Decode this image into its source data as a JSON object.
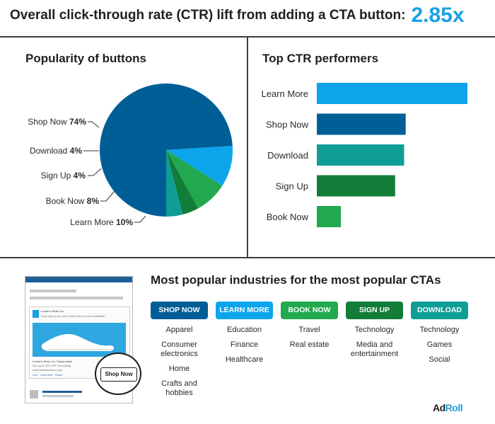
{
  "header": {
    "text": "Overall click-through rate (CTR) lift from adding a CTA button:",
    "value": "2.85x"
  },
  "chart_data": [
    {
      "type": "pie",
      "title": "Popularity of buttons",
      "slices": [
        {
          "label": "Shop Now",
          "pct_label": "74%",
          "value": 74,
          "color": "#005e97"
        },
        {
          "label": "Learn More",
          "pct_label": "10%",
          "value": 10,
          "color": "#0ca5ec"
        },
        {
          "label": "Book Now",
          "pct_label": "8%",
          "value": 8,
          "color": "#22a94f"
        },
        {
          "label": "Sign Up",
          "pct_label": "4%",
          "value": 4,
          "color": "#127c39"
        },
        {
          "label": "Download",
          "pct_label": "4%",
          "value": 4,
          "color": "#0e9e95"
        }
      ]
    },
    {
      "type": "bar",
      "orientation": "horizontal",
      "title": "Top CTR performers",
      "categories": [
        "Learn More",
        "Shop Now",
        "Download",
        "Sign Up",
        "Book Now"
      ],
      "values": [
        100,
        59,
        58,
        52,
        16
      ],
      "colors": [
        "#0ca5ec",
        "#005e97",
        "#0e9e95",
        "#127c39",
        "#22a94f"
      ],
      "xlim": [
        0,
        100
      ],
      "axis_labels_visible": false
    }
  ],
  "ad_mock": {
    "brand": "Leslie's Shoe Co.",
    "tagline": "Save big on your first order from our new collection.",
    "headline": "Leslie's Shoe Co. Yearly Sale!",
    "caption": "Get up to 70% OFF everything",
    "url": "www.lesliesshoeco.com",
    "actions": "Like · Comment · Share",
    "cta": "Shop Now"
  },
  "industries": {
    "title": "Most popular industries for the most popular CTAs",
    "columns": [
      {
        "cta": "SHOP NOW",
        "color": "#005e97",
        "items": [
          "Apparel",
          "Consumer\nelectronics",
          "Home",
          "Crafts and\nhobbies"
        ]
      },
      {
        "cta": "LEARN MORE",
        "color": "#0ca5ec",
        "items": [
          "Education",
          "Finance",
          "Healthcare"
        ]
      },
      {
        "cta": "BOOK NOW",
        "color": "#22a94f",
        "items": [
          "Travel",
          "Real estate"
        ]
      },
      {
        "cta": "SIGN UP",
        "color": "#127c39",
        "items": [
          "Technology",
          "Media and\nentertainment"
        ]
      },
      {
        "cta": "DOWNLOAD",
        "color": "#0e9e95",
        "items": [
          "Technology",
          "Games",
          "Social"
        ]
      }
    ]
  },
  "logo": {
    "ad": "Ad",
    "roll": "Roll"
  }
}
